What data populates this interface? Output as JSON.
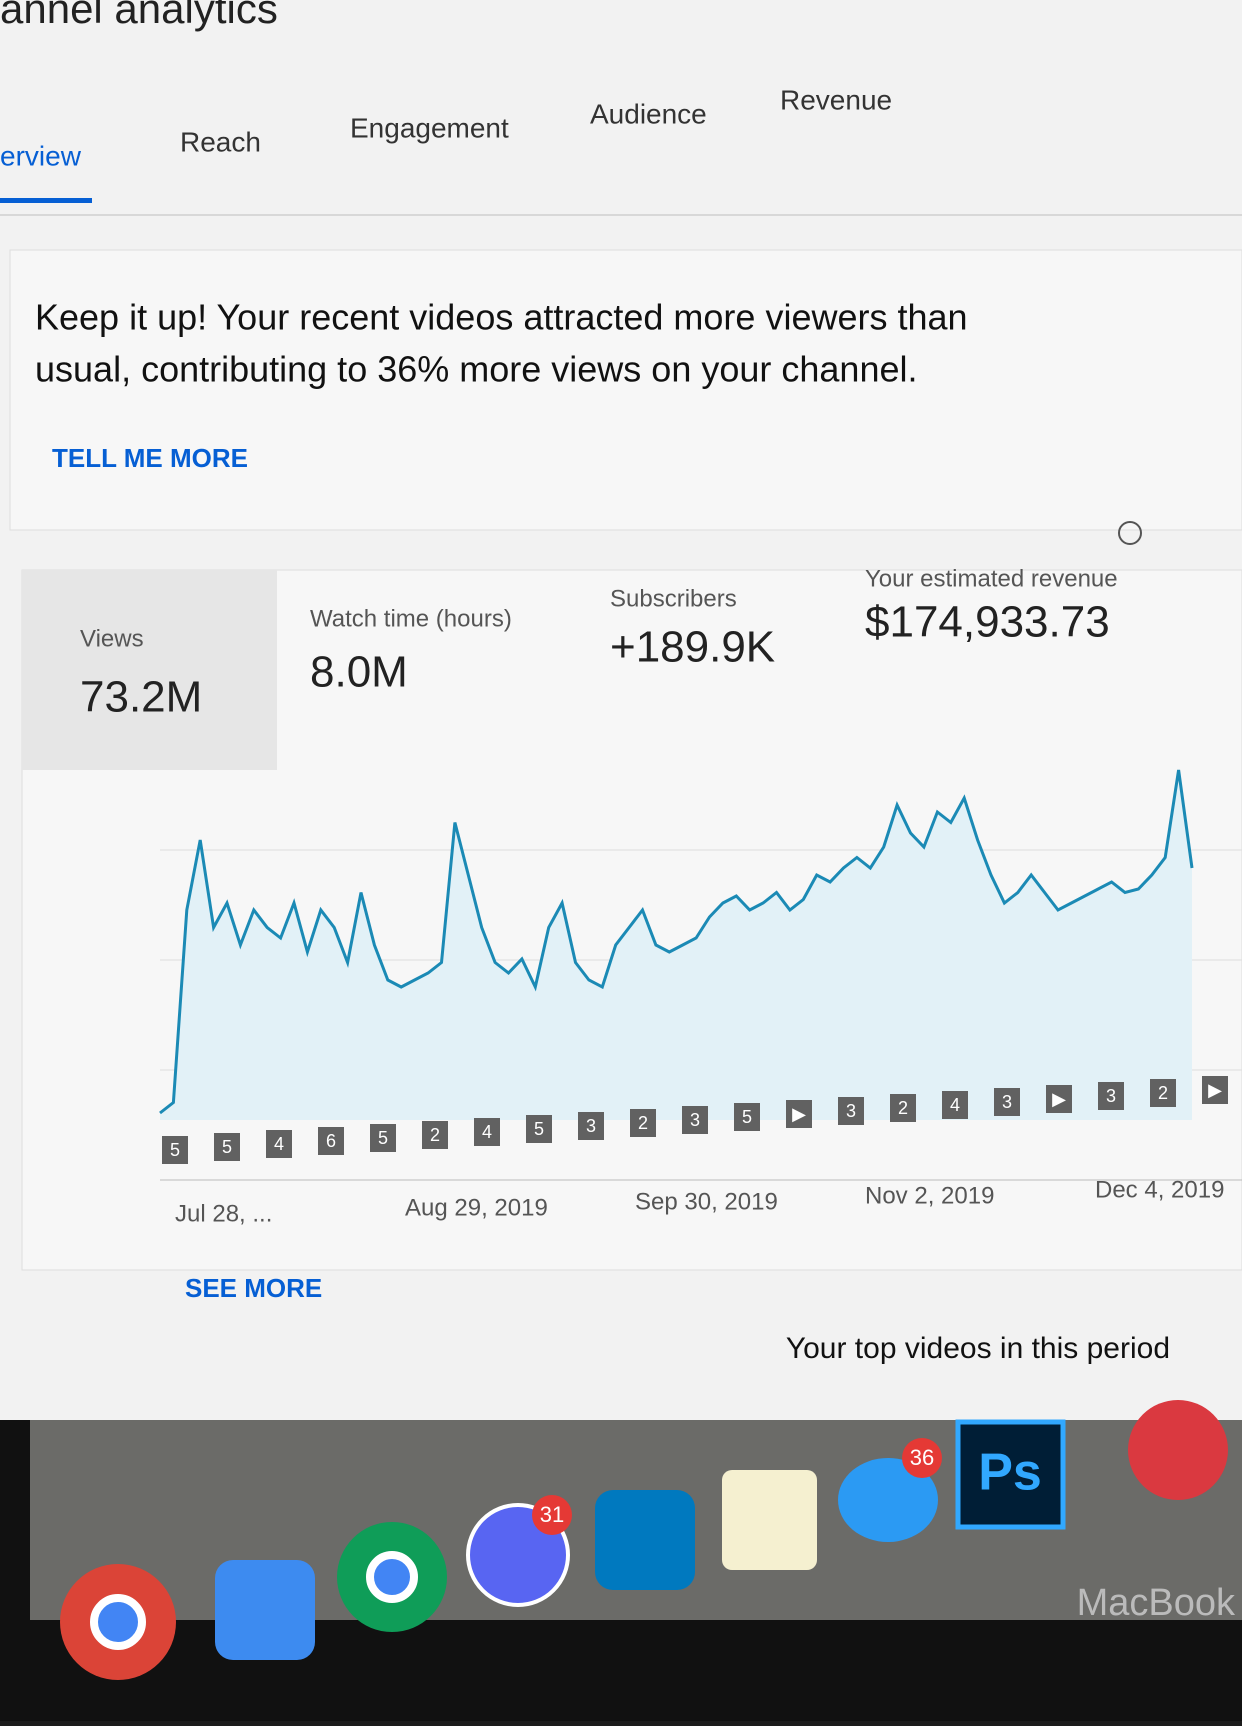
{
  "header": {
    "title": "annel analytics"
  },
  "tabs": [
    "erview",
    "Reach",
    "Engagement",
    "Audience",
    "Revenue"
  ],
  "insight": {
    "lines": [
      "Keep it up! Your recent videos attracted more viewers than",
      "usual, contributing to 36% more views on your channel."
    ],
    "link": "TELL ME MORE"
  },
  "metrics": [
    {
      "label": "Views",
      "value": "73.2M"
    },
    {
      "label": "Watch time (hours)",
      "value": "8.0M"
    },
    {
      "label": "Subscribers",
      "value": "+189.9K"
    },
    {
      "label": "Your estimated revenue",
      "value": "$174,933.73"
    }
  ],
  "chart_data": {
    "type": "line",
    "color": "#1b8ab5",
    "fill": "#e2f1f7",
    "values": [
      2,
      5,
      60,
      80,
      55,
      62,
      50,
      60,
      55,
      52,
      62,
      48,
      60,
      55,
      45,
      65,
      50,
      40,
      38,
      40,
      42,
      45,
      85,
      70,
      55,
      45,
      42,
      46,
      38,
      55,
      62,
      45,
      40,
      38,
      50,
      55,
      60,
      50,
      48,
      50,
      52,
      58,
      62,
      64,
      60,
      62,
      65,
      60,
      63,
      70,
      68,
      72,
      75,
      72,
      78,
      90,
      82,
      78,
      88,
      85,
      92,
      80,
      70,
      62,
      65,
      70,
      65,
      60,
      62,
      64,
      66,
      68,
      65,
      66,
      70,
      75,
      100,
      72
    ],
    "ylim": [
      0,
      100
    ],
    "x_labels": [
      "Jul 28, ...",
      "Aug 29, 2019",
      "Sep 30, 2019",
      "Nov 2, 2019",
      "Dec 4, 2019"
    ],
    "markers": [
      "5",
      "5",
      "4",
      "6",
      "5",
      "2",
      "4",
      "5",
      "3",
      "2",
      "3",
      "5",
      "▶",
      "3",
      "2",
      "4",
      "3",
      "▶",
      "3",
      "2",
      "▶"
    ]
  },
  "see_more": "SEE MORE",
  "top_videos": "Your top videos in this period",
  "dock": {
    "badges": [
      "31",
      "36"
    ],
    "ps": "Ps",
    "brand": "MacBook"
  }
}
